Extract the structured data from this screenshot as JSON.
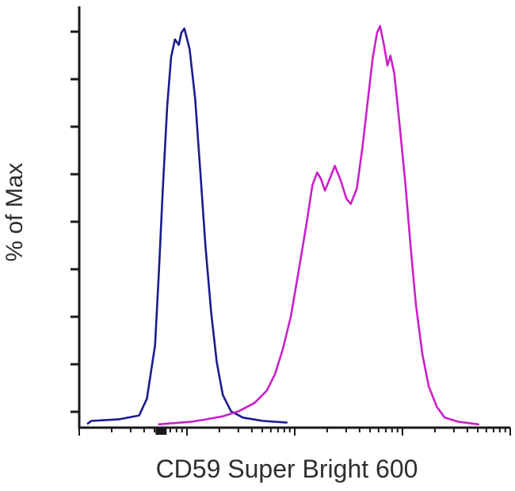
{
  "chart_data": {
    "type": "line",
    "subtype": "flow-cytometry-histogram-overlay",
    "title": "",
    "xlabel": "CD59 Super Bright 600",
    "ylabel": "% of Max",
    "legend": "none",
    "grid": false,
    "background_color": "#ffffff",
    "axis_color": "#1a1a1a",
    "x_axis": {
      "scale": "log",
      "decades": 4,
      "tick_labels": [],
      "bold_tick_fraction": 0.19
    },
    "y_axis": {
      "tick_count": 9,
      "tick_labels": []
    },
    "series": [
      {
        "name": "blue-histogram",
        "color": "#1b1b8e",
        "points": [
          [
            0.02,
            0.01
          ],
          [
            0.028,
            0.016
          ],
          [
            0.093,
            0.02
          ],
          [
            0.139,
            0.029
          ],
          [
            0.157,
            0.069
          ],
          [
            0.176,
            0.196
          ],
          [
            0.185,
            0.373
          ],
          [
            0.194,
            0.569
          ],
          [
            0.204,
            0.765
          ],
          [
            0.213,
            0.882
          ],
          [
            0.222,
            0.925
          ],
          [
            0.231,
            0.912
          ],
          [
            0.237,
            0.941
          ],
          [
            0.244,
            0.951
          ],
          [
            0.256,
            0.902
          ],
          [
            0.269,
            0.784
          ],
          [
            0.281,
            0.608
          ],
          [
            0.293,
            0.431
          ],
          [
            0.306,
            0.275
          ],
          [
            0.319,
            0.157
          ],
          [
            0.333,
            0.078
          ],
          [
            0.352,
            0.039
          ],
          [
            0.38,
            0.024
          ],
          [
            0.426,
            0.016
          ],
          [
            0.481,
            0.012
          ]
        ]
      },
      {
        "name": "magenta-histogram",
        "color": "#cb1fc9",
        "points": [
          [
            0.185,
            0.008
          ],
          [
            0.259,
            0.014
          ],
          [
            0.296,
            0.02
          ],
          [
            0.333,
            0.027
          ],
          [
            0.37,
            0.039
          ],
          [
            0.407,
            0.059
          ],
          [
            0.435,
            0.088
          ],
          [
            0.454,
            0.127
          ],
          [
            0.472,
            0.186
          ],
          [
            0.491,
            0.265
          ],
          [
            0.509,
            0.373
          ],
          [
            0.528,
            0.49
          ],
          [
            0.541,
            0.578
          ],
          [
            0.552,
            0.608
          ],
          [
            0.561,
            0.592
          ],
          [
            0.57,
            0.565
          ],
          [
            0.583,
            0.598
          ],
          [
            0.593,
            0.624
          ],
          [
            0.607,
            0.588
          ],
          [
            0.62,
            0.545
          ],
          [
            0.63,
            0.533
          ],
          [
            0.644,
            0.569
          ],
          [
            0.657,
            0.667
          ],
          [
            0.67,
            0.784
          ],
          [
            0.681,
            0.882
          ],
          [
            0.691,
            0.941
          ],
          [
            0.698,
            0.957
          ],
          [
            0.707,
            0.912
          ],
          [
            0.715,
            0.863
          ],
          [
            0.722,
            0.886
          ],
          [
            0.731,
            0.843
          ],
          [
            0.741,
            0.745
          ],
          [
            0.756,
            0.588
          ],
          [
            0.769,
            0.431
          ],
          [
            0.781,
            0.294
          ],
          [
            0.796,
            0.176
          ],
          [
            0.811,
            0.098
          ],
          [
            0.83,
            0.049
          ],
          [
            0.848,
            0.024
          ],
          [
            0.88,
            0.014
          ],
          [
            0.926,
            0.008
          ]
        ]
      }
    ]
  }
}
